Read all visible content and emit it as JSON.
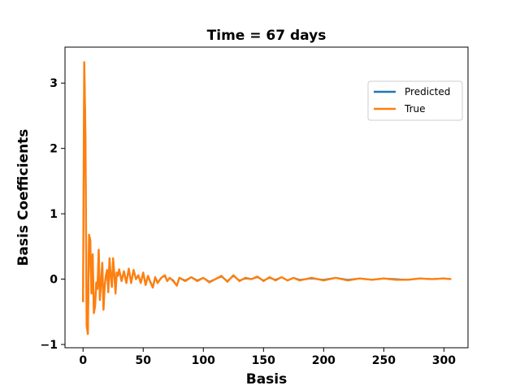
{
  "chart_data": {
    "type": "line",
    "title": "Time = 67 days",
    "xlabel": "Basis",
    "ylabel": "Basis Coefficients",
    "xlim": [
      -15,
      320
    ],
    "ylim": [
      -1.05,
      3.55
    ],
    "xticks": [
      0,
      50,
      100,
      150,
      200,
      250,
      300
    ],
    "yticks": [
      -1,
      0,
      1,
      2,
      3
    ],
    "legend_position": "upper-right",
    "grid": false,
    "n_points": 307,
    "series": [
      {
        "name": "Predicted",
        "color": "#1f77b4",
        "keypoints": [
          [
            0,
            -0.35
          ],
          [
            1,
            3.3
          ],
          [
            2,
            2.2
          ],
          [
            3,
            -0.7
          ],
          [
            4,
            -0.83
          ],
          [
            5,
            0.65
          ],
          [
            6,
            0.6
          ],
          [
            7,
            -0.2
          ],
          [
            8,
            0.36
          ],
          [
            9,
            -0.5
          ],
          [
            10,
            -0.4
          ],
          [
            11,
            -0.05
          ],
          [
            12,
            -0.15
          ],
          [
            13,
            0.45
          ],
          [
            14,
            -0.3
          ],
          [
            15,
            -0.05
          ],
          [
            16,
            0.25
          ],
          [
            17,
            -0.45
          ],
          [
            18,
            -0.1
          ],
          [
            19,
            0.05
          ],
          [
            20,
            0.12
          ],
          [
            21,
            -0.2
          ],
          [
            22,
            0.3
          ],
          [
            23,
            0.05
          ],
          [
            24,
            -0.1
          ],
          [
            25,
            0.3
          ],
          [
            26,
            0.08
          ],
          [
            27,
            -0.2
          ],
          [
            28,
            0.1
          ],
          [
            29,
            0.05
          ],
          [
            30,
            0.15
          ],
          [
            32,
            -0.02
          ],
          [
            34,
            0.12
          ],
          [
            36,
            -0.05
          ],
          [
            38,
            0.16
          ],
          [
            40,
            -0.05
          ],
          [
            42,
            0.14
          ],
          [
            44,
            0.0
          ],
          [
            46,
            0.05
          ],
          [
            48,
            -0.05
          ],
          [
            50,
            0.1
          ],
          [
            52,
            -0.08
          ],
          [
            54,
            0.05
          ],
          [
            56,
            -0.04
          ],
          [
            58,
            -0.12
          ],
          [
            60,
            0.03
          ],
          [
            62,
            -0.05
          ],
          [
            65,
            0.02
          ],
          [
            68,
            0.05
          ],
          [
            70,
            -0.03
          ],
          [
            72,
            0.02
          ],
          [
            75,
            -0.02
          ],
          [
            78,
            -0.1
          ],
          [
            80,
            0.02
          ],
          [
            85,
            -0.02
          ],
          [
            90,
            0.03
          ],
          [
            95,
            -0.02
          ],
          [
            100,
            0.02
          ],
          [
            105,
            -0.04
          ],
          [
            110,
            0.0
          ],
          [
            115,
            0.04
          ],
          [
            120,
            -0.03
          ],
          [
            125,
            0.05
          ],
          [
            130,
            -0.02
          ],
          [
            135,
            0.01
          ],
          [
            140,
            0.0
          ],
          [
            145,
            0.03
          ],
          [
            150,
            -0.02
          ],
          [
            155,
            0.02
          ],
          [
            160,
            -0.01
          ],
          [
            165,
            0.03
          ],
          [
            170,
            -0.02
          ],
          [
            175,
            0.02
          ],
          [
            180,
            -0.01
          ],
          [
            190,
            0.01
          ],
          [
            200,
            -0.01
          ],
          [
            210,
            0.02
          ],
          [
            220,
            -0.01
          ],
          [
            230,
            0.01
          ],
          [
            240,
            -0.01
          ],
          [
            250,
            0.01
          ],
          [
            260,
            0.0
          ],
          [
            270,
            -0.01
          ],
          [
            280,
            0.01
          ],
          [
            290,
            0.0
          ],
          [
            300,
            0.01
          ],
          [
            306,
            0.0
          ]
        ]
      },
      {
        "name": "True",
        "color": "#ff7f0e",
        "keypoints": [
          [
            0,
            -0.35
          ],
          [
            1,
            3.32
          ],
          [
            2,
            2.2
          ],
          [
            3,
            -0.72
          ],
          [
            4,
            -0.84
          ],
          [
            5,
            0.68
          ],
          [
            6,
            0.6
          ],
          [
            7,
            -0.22
          ],
          [
            8,
            0.38
          ],
          [
            9,
            -0.52
          ],
          [
            10,
            -0.42
          ],
          [
            11,
            -0.05
          ],
          [
            12,
            -0.15
          ],
          [
            13,
            0.45
          ],
          [
            14,
            -0.32
          ],
          [
            15,
            -0.05
          ],
          [
            16,
            0.25
          ],
          [
            17,
            -0.47
          ],
          [
            18,
            -0.1
          ],
          [
            19,
            0.06
          ],
          [
            20,
            0.14
          ],
          [
            21,
            -0.2
          ],
          [
            22,
            0.32
          ],
          [
            23,
            0.05
          ],
          [
            24,
            -0.12
          ],
          [
            25,
            0.32
          ],
          [
            26,
            0.08
          ],
          [
            27,
            -0.22
          ],
          [
            28,
            0.1
          ],
          [
            29,
            0.05
          ],
          [
            30,
            0.15
          ],
          [
            32,
            -0.03
          ],
          [
            34,
            0.12
          ],
          [
            36,
            -0.06
          ],
          [
            38,
            0.16
          ],
          [
            40,
            -0.06
          ],
          [
            42,
            0.14
          ],
          [
            44,
            0.0
          ],
          [
            46,
            0.06
          ],
          [
            48,
            -0.06
          ],
          [
            50,
            0.1
          ],
          [
            52,
            -0.09
          ],
          [
            54,
            0.05
          ],
          [
            56,
            -0.05
          ],
          [
            58,
            -0.13
          ],
          [
            60,
            0.03
          ],
          [
            62,
            -0.06
          ],
          [
            65,
            0.02
          ],
          [
            68,
            0.06
          ],
          [
            70,
            -0.03
          ],
          [
            72,
            0.02
          ],
          [
            75,
            -0.03
          ],
          [
            78,
            -0.1
          ],
          [
            80,
            0.02
          ],
          [
            85,
            -0.03
          ],
          [
            90,
            0.03
          ],
          [
            95,
            -0.03
          ],
          [
            100,
            0.02
          ],
          [
            105,
            -0.05
          ],
          [
            110,
            0.0
          ],
          [
            115,
            0.05
          ],
          [
            120,
            -0.04
          ],
          [
            125,
            0.06
          ],
          [
            130,
            -0.03
          ],
          [
            135,
            0.02
          ],
          [
            140,
            0.0
          ],
          [
            145,
            0.04
          ],
          [
            150,
            -0.03
          ],
          [
            155,
            0.03
          ],
          [
            160,
            -0.02
          ],
          [
            165,
            0.03
          ],
          [
            170,
            -0.02
          ],
          [
            175,
            0.02
          ],
          [
            180,
            -0.02
          ],
          [
            190,
            0.02
          ],
          [
            200,
            -0.02
          ],
          [
            210,
            0.02
          ],
          [
            220,
            -0.02
          ],
          [
            230,
            0.01
          ],
          [
            240,
            -0.01
          ],
          [
            250,
            0.01
          ],
          [
            260,
            -0.01
          ],
          [
            270,
            -0.01
          ],
          [
            280,
            0.01
          ],
          [
            290,
            0.0
          ],
          [
            300,
            0.01
          ],
          [
            306,
            0.0
          ]
        ]
      }
    ]
  }
}
